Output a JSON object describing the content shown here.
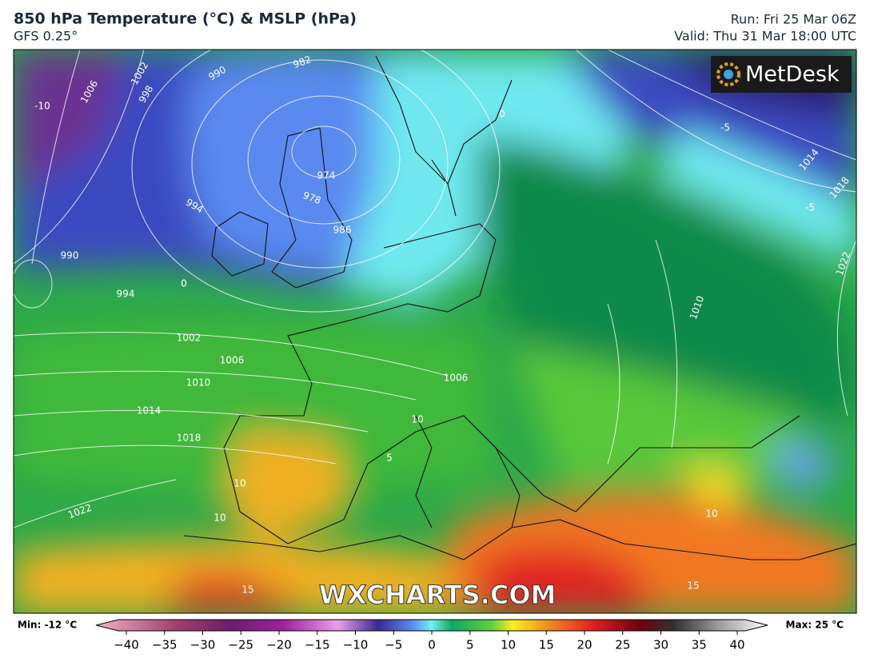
{
  "header": {
    "title": "850 hPa Temperature (°C) & MSLP (hPa)",
    "model": "GFS 0.25°",
    "run": "Run: Fri 25 Mar 06Z",
    "valid": "Valid: Thu 31 Mar 18:00 UTC"
  },
  "map": {
    "logo": "MetDesk",
    "watermark": "WXCHARTS.COM",
    "contour_labels": [
      "1006",
      "1002",
      "998",
      "990",
      "982",
      "974",
      "978",
      "986",
      "994",
      "990",
      "994",
      "1002",
      "1006",
      "1010",
      "1014",
      "1018",
      "1022",
      "1006",
      "1010",
      "1014",
      "1018",
      "1022",
      "10",
      "10",
      "10",
      "10",
      "15",
      "15",
      "0",
      "0",
      "-5",
      "-5",
      "5",
      "-10"
    ]
  },
  "colorbar": {
    "min_label": "Min: -12 °C",
    "max_label": "Max: 25 °C",
    "ticks": [
      {
        "value": -40,
        "label": "−40"
      },
      {
        "value": -35,
        "label": "−35"
      },
      {
        "value": -30,
        "label": "−30"
      },
      {
        "value": -25,
        "label": "−25"
      },
      {
        "value": -20,
        "label": "−20"
      },
      {
        "value": -15,
        "label": "−15"
      },
      {
        "value": -10,
        "label": "−10"
      },
      {
        "value": -5,
        "label": "−5"
      },
      0,
      5,
      10,
      15,
      20,
      25,
      30,
      35,
      40
    ]
  }
}
